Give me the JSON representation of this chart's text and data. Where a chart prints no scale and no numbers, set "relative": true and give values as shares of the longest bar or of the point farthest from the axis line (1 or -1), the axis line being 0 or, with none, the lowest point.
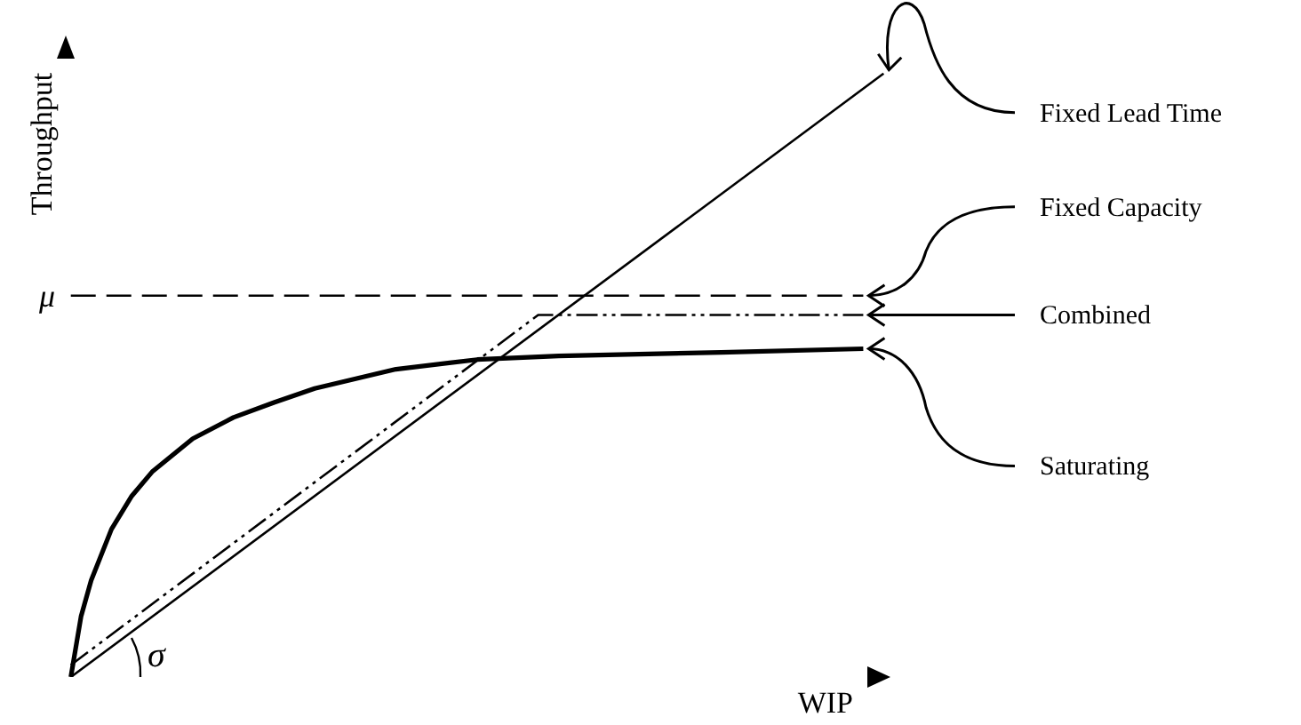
{
  "chart_data": {
    "type": "line",
    "relative": true,
    "xlabel": "WIP",
    "ylabel": "Throughput",
    "legend": false,
    "grid": false,
    "marker": "none",
    "categories": [
      null,
      null,
      null,
      null,
      null,
      null,
      null,
      null,
      null,
      null,
      null,
      null,
      null,
      null,
      null,
      null,
      null,
      null,
      null,
      null,
      null,
      null,
      null,
      null,
      null,
      null,
      null,
      null,
      null,
      null,
      null,
      null,
      null,
      null,
      null,
      null,
      null,
      null,
      null,
      null,
      null,
      null,
      null,
      null,
      null,
      null,
      null,
      null,
      null,
      null,
      null,
      null,
      null,
      null,
      null,
      null,
      null,
      null,
      null,
      null,
      null,
      null,
      null,
      null,
      null,
      null,
      null,
      null,
      null,
      null,
      null,
      null,
      null,
      null,
      null,
      null,
      null,
      null,
      null,
      null,
      null
    ],
    "series": [
      {
        "name": "Fixed Lead Time",
        "color": "#000000",
        "line_style": "solid",
        "values": [
          0,
          null,
          null,
          null,
          null,
          null,
          null,
          null,
          null,
          null,
          null,
          null,
          null,
          null,
          null,
          null,
          null,
          null,
          null,
          null,
          null,
          null,
          null,
          null,
          null,
          null,
          null,
          null,
          null,
          null,
          null,
          null,
          null,
          null,
          null,
          null,
          null,
          null,
          null,
          null,
          null,
          null,
          null,
          null,
          null,
          null,
          null,
          null,
          null,
          null,
          null,
          null,
          null,
          null,
          null,
          null,
          null,
          null,
          null,
          null,
          null,
          null,
          null,
          null,
          null,
          null,
          null,
          null,
          null,
          null,
          null,
          null,
          null,
          null,
          null,
          null,
          null,
          null,
          null,
          null,
          1
        ]
      },
      {
        "name": "Fixed Capacity",
        "color": "#000000",
        "line_style": "dashed",
        "values": [
          0.632,
          null,
          null,
          null,
          null,
          null,
          null,
          null,
          null,
          null,
          null,
          null,
          null,
          null,
          null,
          null,
          null,
          null,
          null,
          null,
          null,
          null,
          null,
          null,
          null,
          null,
          null,
          null,
          null,
          null,
          null,
          null,
          null,
          null,
          null,
          null,
          null,
          null,
          null,
          null,
          null,
          null,
          null,
          null,
          null,
          null,
          null,
          null,
          null,
          null,
          null,
          null,
          null,
          null,
          null,
          null,
          null,
          null,
          null,
          null,
          null,
          null,
          null,
          null,
          null,
          null,
          null,
          null,
          null,
          null,
          null,
          null,
          null,
          null,
          null,
          null,
          null,
          null,
          0.632,
          null,
          null
        ]
      },
      {
        "name": "Combined",
        "color": "#000000",
        "line_style": "dotted",
        "values": [
          0.02,
          null,
          null,
          null,
          null,
          null,
          null,
          null,
          null,
          null,
          null,
          null,
          null,
          null,
          null,
          null,
          null,
          null,
          null,
          null,
          null,
          null,
          null,
          null,
          null,
          null,
          null,
          null,
          null,
          null,
          null,
          null,
          null,
          null,
          null,
          null,
          null,
          null,
          null,
          null,
          null,
          null,
          null,
          null,
          null,
          null,
          0.6,
          null,
          null,
          null,
          null,
          null,
          null,
          null,
          null,
          null,
          null,
          null,
          null,
          null,
          null,
          null,
          null,
          null,
          null,
          null,
          null,
          null,
          null,
          null,
          null,
          null,
          null,
          null,
          null,
          null,
          null,
          null,
          0.6,
          null,
          null
        ]
      },
      {
        "name": "Saturating",
        "color": "#000000",
        "line_style": "solid",
        "values": [
          0,
          0.1,
          0.16,
          null,
          0.245,
          null,
          0.3,
          null,
          0.34,
          null,
          null,
          null,
          0.395,
          null,
          null,
          null,
          0.43,
          null,
          null,
          null,
          0.455,
          null,
          null,
          null,
          0.478,
          null,
          null,
          null,
          null,
          null,
          null,
          null,
          0.51,
          null,
          null,
          null,
          null,
          null,
          null,
          null,
          0.526,
          null,
          null,
          null,
          null,
          null,
          null,
          null,
          0.532,
          null,
          null,
          null,
          null,
          null,
          null,
          null,
          null,
          null,
          null,
          null,
          null,
          null,
          null,
          null,
          0.538,
          null,
          null,
          null,
          null,
          null,
          null,
          null,
          null,
          null,
          null,
          null,
          null,
          null,
          0.544,
          null,
          null
        ]
      }
    ],
    "annotations": [
      "μ",
      "σ"
    ]
  }
}
